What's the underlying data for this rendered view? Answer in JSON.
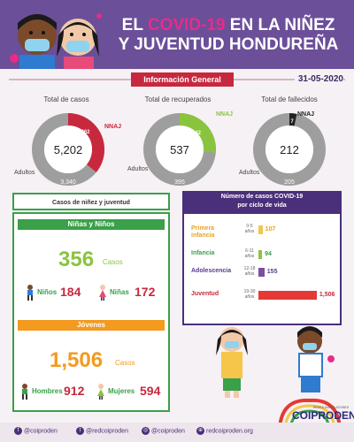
{
  "header": {
    "title_line1_prefix": "EL ",
    "title_line1_accent": "COVID-19",
    "title_line1_suffix": " EN LA NIÑEZ",
    "title_line2": "Y JUVENTUD HONDUREÑA"
  },
  "info_label": "Información General",
  "date": "31-05-2020",
  "stats": {
    "cases": {
      "title": "Total de casos",
      "total": "5,202",
      "nnaj": "1,862",
      "adults": "3,340",
      "nnaj_label": "NNAJ",
      "adults_label": "Adultos"
    },
    "recovered": {
      "title": "Total de recuperados",
      "total": "537",
      "nnaj": "142",
      "adults": "395",
      "nnaj_label": "NNAJ",
      "adults_label": "Adultos"
    },
    "deaths": {
      "title": "Total de fallecidos",
      "total": "212",
      "nnaj": "7",
      "adults": "205",
      "nnaj_label": "NNAJ",
      "adults_label": "Adultos"
    }
  },
  "colors": {
    "purple": "#6b4f99",
    "magenta": "#e82b8a",
    "red": "#c8283e",
    "green": "#3aa04a",
    "light_green": "#8ac43f",
    "gray": "#9e9e9e",
    "orange": "#f39a1f",
    "yellow": "#f5c64a"
  },
  "left_section": {
    "heading": "Casos de niñez y juventud",
    "children": {
      "label": "Niñas y Niños",
      "total": "356",
      "unit": "Casos",
      "boys_label": "Niños",
      "boys": "184",
      "girls_label": "Niñas",
      "girls": "172"
    },
    "youth": {
      "label": "Jóvenes",
      "total": "1,506",
      "unit": "Casos",
      "men_label": "Hombres",
      "men": "912",
      "women_label": "Mujeres",
      "women": "594"
    }
  },
  "right_section": {
    "heading_line1": "Número de casos COVID-19",
    "heading_line2": "por ciclo de vida"
  },
  "chart_data": {
    "type": "bar",
    "orientation": "horizontal",
    "categories": [
      "Primera infancia",
      "Infancia",
      "Adolescencia",
      "Juventud"
    ],
    "ranges": [
      "0-5 años",
      "6-11 años",
      "12-18 años",
      "19-30 años"
    ],
    "values": [
      107,
      94,
      155,
      1506
    ],
    "value_labels": [
      "107",
      "94",
      "155",
      "1,506"
    ],
    "colors": [
      "#f5c64a",
      "#8ac43f",
      "#7b4fa0",
      "#e53935"
    ],
    "label_colors": [
      "#e8a21f",
      "#3aa04a",
      "#5a3a8a",
      "#c8283e"
    ],
    "xlim": [
      0,
      1600
    ]
  },
  "footer": {
    "facebook": "@coiproden",
    "twitter": "@redcoiproden",
    "instagram": "@coiproden",
    "web": "redcoiproden.org"
  },
  "logo": {
    "name": "COIPRODEN",
    "subtitle": "POR LOS DERECHOS DE LA NIÑEZ",
    "tagline": "REDES INSTITUCIONES"
  }
}
